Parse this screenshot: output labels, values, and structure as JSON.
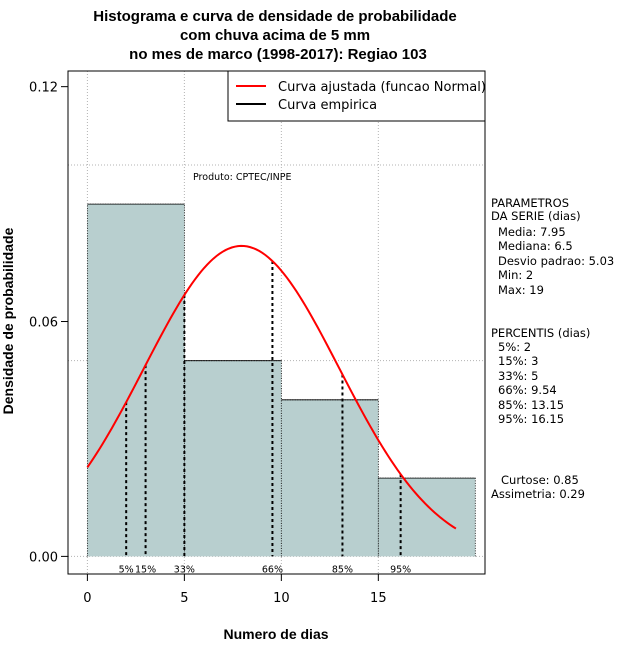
{
  "chart_data": {
    "type": "bar",
    "title": [
      "Histograma e curva de densidade de probabilidade",
      "com chuva acima de 5 mm",
      "no mes de marco (1998-2017): Regiao 103"
    ],
    "xlabel": "Numero de dias",
    "ylabel": "Densidade de probabilidade",
    "xlim": [
      -1,
      20.5
    ],
    "ylim": [
      -0.0045,
      0.124
    ],
    "x_ticks": [
      0,
      5,
      10,
      15
    ],
    "y_ticks": [
      0.0,
      0.06,
      0.12
    ],
    "y_tick_labels": [
      "0.00",
      "0.06",
      "0.12"
    ],
    "grid": true,
    "grid_x": [
      0,
      5,
      10,
      15
    ],
    "grid_y": [
      0.0,
      0.05,
      0.1
    ],
    "bins": [
      {
        "from": 0,
        "to": 5,
        "density": 0.09
      },
      {
        "from": 5,
        "to": 10,
        "density": 0.05
      },
      {
        "from": 10,
        "to": 15,
        "density": 0.04
      },
      {
        "from": 15,
        "to": 20,
        "density": 0.02
      }
    ],
    "bar_color": "#b8cfcf",
    "fitted_curve": {
      "name": "Curva ajustada (funcao Normal)",
      "distribution": "normal",
      "mean": 7.95,
      "sd": 5.03,
      "x_range": [
        0,
        19
      ],
      "color": "#ff0000"
    },
    "empirical_curve": {
      "name": "Curva empirica",
      "color": "#000000"
    },
    "percentile_lines": [
      {
        "label": "5%",
        "x": 2
      },
      {
        "label": "15%",
        "x": 3
      },
      {
        "label": "33%",
        "x": 5
      },
      {
        "label": "66%",
        "x": 9.54
      },
      {
        "label": "85%",
        "x": 13.15
      },
      {
        "label": "95%",
        "x": 16.15
      }
    ],
    "legend": {
      "position": "top-right",
      "entries": [
        {
          "label": "Curva ajustada (funcao Normal)",
          "color": "#ff0000"
        },
        {
          "label": "Curva empirica",
          "color": "#000000"
        }
      ]
    },
    "annotation": "Produto: CPTEC/INPE"
  },
  "side_panel": {
    "parametros": [
      "PARAMETROS",
      "DA SERIE (dias)",
      "Media: 7.95",
      "Mediana: 6.5",
      "Desvio padrao: 5.03",
      "Min: 2",
      "Max: 19"
    ],
    "percentis": [
      "PERCENTIS (dias)",
      "5%: 2",
      "15%: 3",
      "33%: 5",
      "66%: 9.54",
      "85%: 13.15",
      "95%: 16.15"
    ],
    "shape": [
      "Curtose: 0.85",
      "Assimetria: 0.29"
    ]
  }
}
